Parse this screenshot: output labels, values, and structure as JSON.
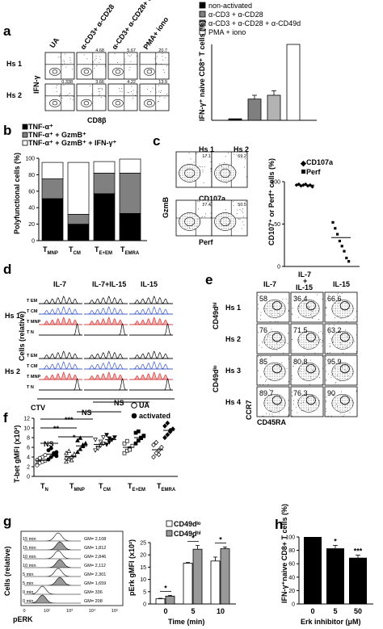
{
  "panels": {
    "a": {
      "letter": "a",
      "columns": [
        "UA",
        "α-CD3+ α-CD28",
        "α-CD3+ α-CD28+ α-CD49d",
        "PMA+ iono"
      ],
      "rows": [
        "Hs 1",
        "Hs 2"
      ],
      "percents": [
        [
          "",
          "4.68",
          "5.67",
          "20.7"
        ],
        [
          "0.338",
          "3.66",
          "4.22",
          "13.9"
        ]
      ],
      "y_axis": "IFN-γ",
      "x_axis": "CD8β"
    },
    "b": {
      "letter": "b",
      "legend": [
        "TNF-α⁺",
        "TNF-α⁺ + GzmB⁺",
        "TNF-α⁺ + GzmB⁺ + IFN-γ⁺"
      ],
      "ylabel": "Polyfunctional cells (%)"
    },
    "c": {
      "letter": "c",
      "flow_titles": [
        "Hs 1",
        "Hs 2"
      ],
      "flow_percents": [
        "17.1",
        "69.2",
        "17.4",
        "50.5"
      ],
      "flow_x": [
        "CD107a",
        "Perf"
      ],
      "flow_y": "GzmB",
      "legend": [
        "CD107a",
        "Perf"
      ],
      "ylabel": "CD107⁺ or Perf⁺ cells (%)"
    },
    "d": {
      "letter": "d",
      "columns": [
        "IL-7",
        "IL-7+IL-15",
        "IL-15"
      ],
      "rows": [
        "Hs 1",
        "Hs 2"
      ],
      "subsets": [
        "T_EM",
        "T_CM",
        "T_MNP",
        "T_N"
      ],
      "ylabel": "Cells (relative)",
      "xlabel": "CTV"
    },
    "e": {
      "letter": "e",
      "columns": [
        "IL-7",
        "IL-7 + IL-15",
        "IL-15"
      ],
      "rows": [
        "Hs 1",
        "Hs 2",
        "Hs 3",
        "Hs 4"
      ],
      "percents": [
        [
          "58",
          "36.4",
          "66.6"
        ],
        [
          "76",
          "71.5",
          "63.2"
        ],
        [
          "85",
          "80.8",
          "95.9"
        ],
        [
          "89.7",
          "76.3",
          "90"
        ]
      ],
      "group_labels": [
        "CD49dʰⁱ",
        "CD49dˡᵒ"
      ],
      "y_axis": "CCR7",
      "x_axis": "CD45RA"
    },
    "f": {
      "letter": "f",
      "ns": [
        "NS",
        "NS",
        "NS"
      ],
      "stars": [
        "**",
        "***",
        "*"
      ],
      "legend": [
        "UA",
        "activated"
      ],
      "ylabel": "T-bet gMFI (x10²)"
    },
    "g": {
      "letter": "g",
      "hist_times": [
        "15 min",
        "15 min",
        "10 min",
        "10 min",
        "5 min",
        "5 min",
        "0 min",
        "0 min"
      ],
      "hist_gm": [
        "GM= 2,108",
        "GM= 1,812",
        "GM= 2,846",
        "GM= 2,112",
        "GM= 2,301",
        "GM= 1,659",
        "GM= 336",
        "GM= 208"
      ],
      "hist_ylabel": "Cells (relative)",
      "hist_xlabel": "pERK",
      "hist_xticks": [
        "0",
        "10²",
        "10³",
        "10⁴",
        "10⁵"
      ],
      "legend": [
        "CD49dˡᵒ",
        "CD49dʰⁱ"
      ],
      "ylabel": "pErk gMFI (x10²)",
      "xlabel": "Time (min)",
      "stars": [
        "*",
        "*",
        "*"
      ]
    },
    "h": {
      "letter": "h",
      "ylabel": "IFN-γ⁺naive CD8+ T cells (%)",
      "xlabel": "Erk inhibitor (μM)",
      "stars": [
        "*",
        "***"
      ]
    }
  },
  "chart_data": [
    {
      "id": "a-bar",
      "type": "bar",
      "categories": [
        "non-activated",
        "α-CD3 + α-CD28",
        "α-CD3 + α-CD28 + α-CD49d",
        "PMA + iono"
      ],
      "values": [
        2,
        28,
        33,
        100
      ],
      "errors": [
        0,
        5,
        6,
        0
      ],
      "colors": [
        "#000000",
        "#7f7f7f",
        "#b3b3b3",
        "#ffffff"
      ],
      "legend": [
        "non-activated",
        "α-CD3 + α-CD28",
        "α-CD3 + α-CD28 + α-CD49d",
        "PMA + iono"
      ],
      "ylabel": "IFN-γ⁺ naive CD8⁺ T cells (%)",
      "ylim": [
        0,
        100
      ]
    },
    {
      "id": "b-stacked",
      "type": "bar",
      "categories": [
        "T_MNP",
        "T_CM",
        "T_E+EM",
        "T_EMRA"
      ],
      "series": [
        {
          "name": "TNF-α⁺ + GzmB⁺ + IFN-γ⁺",
          "values": [
            51,
            20,
            57,
            33
          ],
          "color": "#000000"
        },
        {
          "name": "TNF-α⁺ + GzmB⁺",
          "values": [
            24,
            12,
            25,
            49
          ],
          "color": "#808080"
        },
        {
          "name": "TNF-α⁺",
          "values": [
            20,
            63,
            14,
            17
          ],
          "color": "#ffffff"
        }
      ],
      "yticks": [
        "0",
        "20",
        "40",
        "60",
        "80",
        "100"
      ],
      "ylim": [
        0,
        100
      ]
    },
    {
      "id": "c-scatter",
      "type": "scatter",
      "categories": [
        "CD107a",
        "Perf"
      ],
      "series": [
        {
          "name": "CD107a",
          "values": [
            96,
            97,
            95,
            96,
            97,
            95,
            96,
            94
          ],
          "mean": 96
        },
        {
          "name": "Perf",
          "values": [
            52,
            45,
            38,
            30,
            24,
            18,
            10,
            6
          ],
          "mean": 34
        }
      ],
      "yticks": [
        "0",
        "50",
        "100"
      ],
      "ylim": [
        0,
        100
      ]
    },
    {
      "id": "f-scatter",
      "type": "scatter",
      "categories": [
        "T_N",
        "T_MNP",
        "T_CM",
        "T_E+EM",
        "T_EMRA"
      ],
      "series": [
        {
          "name": "UA",
          "groups": [
            [
              2.5,
              2.8,
              3.0,
              3.2,
              3.4,
              3.6,
              4.0,
              4.4,
              2.3,
              3.8
            ],
            [
              3.0,
              3.6,
              4.0,
              4.3,
              4.8,
              5.2,
              3.3,
              4.6,
              3.8
            ],
            [
              5.4,
              6.0,
              6.4,
              6.8,
              7.6,
              5.8,
              7.2,
              8.1
            ],
            [
              4.8,
              5.3,
              5.8,
              6.3,
              6.8,
              7.3,
              5.5
            ],
            [
              4.0,
              4.8,
              5.4,
              6.0,
              6.5,
              7.0,
              4.5
            ]
          ]
        },
        {
          "name": "activated",
          "groups": [
            [
              3.5,
              4.0,
              4.5,
              5.0,
              5.4,
              5.8,
              4.8,
              4.2
            ],
            [
              5.0,
              5.6,
              6.2,
              6.8,
              7.4,
              7.9,
              6.5
            ],
            [
              6.6,
              7.1,
              7.6,
              8.1,
              8.6,
              7.9
            ],
            [
              6.8,
              7.4,
              7.9,
              8.4,
              9.0,
              9.3,
              8.0
            ],
            [
              8.0,
              8.6,
              9.2,
              9.8,
              10.4,
              11.0,
              9.5
            ]
          ]
        }
      ],
      "means": [
        [
          3.3,
          4.6
        ],
        [
          4.1,
          6.3
        ],
        [
          6.6,
          7.6
        ],
        [
          6.0,
          8.0
        ],
        [
          5.5,
          9.5
        ]
      ],
      "yticks": [
        "0",
        "2",
        "4",
        "6",
        "8",
        "10",
        "12"
      ],
      "ylim": [
        0,
        12
      ]
    },
    {
      "id": "g-bar",
      "type": "bar",
      "categories": [
        "0",
        "5",
        "10"
      ],
      "series": [
        {
          "name": "CD49dˡᵒ",
          "values": [
            2.1,
            16.6,
            17.5
          ],
          "errors": [
            0.2,
            0.3,
            1.6
          ],
          "color": "#ffffff"
        },
        {
          "name": "CD49dʰⁱ",
          "values": [
            3.2,
            22.3,
            22.5
          ],
          "errors": [
            0.3,
            1.5,
            0.7
          ],
          "color": "#999999"
        }
      ],
      "yticks": [
        "0",
        "5",
        "10",
        "15",
        "20",
        "25"
      ],
      "ylim": [
        0,
        25
      ]
    },
    {
      "id": "h-bar",
      "type": "bar",
      "categories": [
        "0",
        "5",
        "50"
      ],
      "values": [
        100,
        83,
        69
      ],
      "errors": [
        0,
        4.5,
        4
      ],
      "color": "#000000",
      "yticks": [
        "0",
        "20",
        "40",
        "60",
        "80",
        "100"
      ],
      "ylim": [
        0,
        100
      ]
    }
  ]
}
